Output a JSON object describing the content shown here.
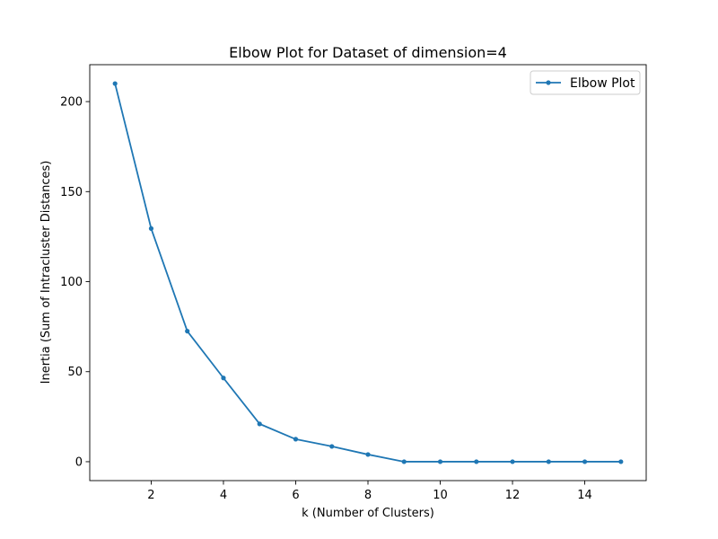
{
  "chart_data": {
    "type": "line",
    "title": "Elbow Plot for Dataset of dimension=4",
    "xlabel": "k (Number of Clusters)",
    "ylabel": "Inertia (Sum of Intracluster Distances)",
    "xlim": [
      0.3,
      15.7
    ],
    "ylim": [
      -10.5,
      220.5
    ],
    "x_ticks": [
      2,
      4,
      6,
      8,
      10,
      12,
      14
    ],
    "y_ticks": [
      0,
      50,
      100,
      150,
      200
    ],
    "grid": false,
    "legend_position": "top-right",
    "series": [
      {
        "name": "Elbow Plot",
        "color": "#1f77b4",
        "marker": "circle",
        "x": [
          1,
          2,
          3,
          4,
          5,
          6,
          7,
          8,
          9,
          10,
          11,
          12,
          13,
          14,
          15
        ],
        "y": [
          210,
          129.5,
          72.5,
          46.5,
          21,
          12.5,
          8.5,
          4,
          0,
          0,
          0,
          0,
          0,
          0,
          0
        ]
      }
    ]
  }
}
